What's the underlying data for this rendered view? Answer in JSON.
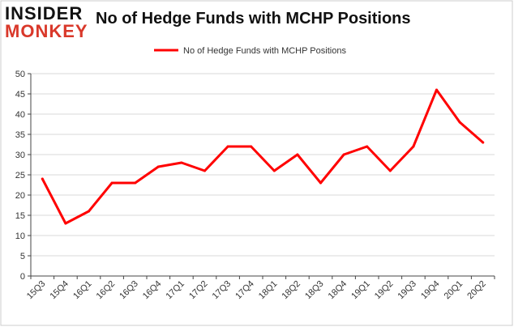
{
  "logo": {
    "top": "INSIDER",
    "bottom": "MONKEY"
  },
  "colors": {
    "line": "#ff0000",
    "grid": "#d9d9d9",
    "logo_red": "#d9382a",
    "axis": "#444444"
  },
  "chart_data": {
    "type": "line",
    "title": "No of Hedge Funds with MCHP Positions",
    "xlabel": "",
    "ylabel": "",
    "ylim": [
      0,
      50
    ],
    "yticks": [
      0,
      5,
      10,
      15,
      20,
      25,
      30,
      35,
      40,
      45,
      50
    ],
    "grid": true,
    "legend": "top-center",
    "categories": [
      "15Q3",
      "15Q4",
      "16Q1",
      "16Q2",
      "16Q3",
      "16Q4",
      "17Q1",
      "17Q2",
      "17Q3",
      "17Q4",
      "18Q1",
      "18Q2",
      "18Q3",
      "18Q4",
      "19Q1",
      "19Q2",
      "19Q3",
      "19Q4",
      "20Q1",
      "20Q2"
    ],
    "series": [
      {
        "name": "No of Hedge Funds with MCHP Positions",
        "values": [
          24,
          13,
          16,
          23,
          23,
          27,
          28,
          26,
          32,
          32,
          26,
          30,
          23,
          30,
          32,
          26,
          32,
          46,
          38,
          33
        ]
      }
    ]
  }
}
